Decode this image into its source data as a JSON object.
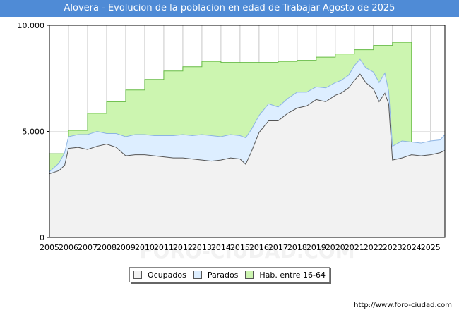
{
  "title": "Alovera - Evolucion de la poblacion en edad de Trabajar Agosto de 2025",
  "source_url": "http://www.foro-ciudad.com",
  "watermark": "FORO-CIUDAD.COM",
  "colors": {
    "title_bg": "#4f8bd6",
    "ocupados_fill": "#f2f2f2",
    "ocupados_line": "#555555",
    "parados_fill": "#ddeeff",
    "parados_line": "#8db4e2",
    "hab_fill": "#ccf5b0",
    "hab_line": "#66bb44"
  },
  "chart_data": {
    "type": "area",
    "title": "Alovera - Evolucion de la poblacion en edad de Trabajar Agosto de 2025",
    "xlabel": "",
    "ylabel": "",
    "x_tick_labels": [
      "2005",
      "2006",
      "2007",
      "2008",
      "2009",
      "2010",
      "2011",
      "2012",
      "2013",
      "2014",
      "2015",
      "2016",
      "2017",
      "2018",
      "2019",
      "2020",
      "2021",
      "2022",
      "2023",
      "2024",
      "2025"
    ],
    "y_tick_labels": [
      "0",
      "5.000",
      "10.000"
    ],
    "y_ticks": [
      0,
      5000,
      10000
    ],
    "xlim": [
      2005,
      2025.75
    ],
    "ylim": [
      0,
      10000
    ],
    "grid": "vertical",
    "legend_position": "bottom",
    "legend": [
      "Ocupados",
      "Parados",
      "Hab. entre 16-64"
    ],
    "hab_entre_16_64": {
      "name": "Hab. entre 16-64",
      "values": [
        {
          "year": 2005,
          "value": 3950
        },
        {
          "year": 2006,
          "value": 5050
        },
        {
          "year": 2007,
          "value": 5850
        },
        {
          "year": 2008,
          "value": 6400
        },
        {
          "year": 2009,
          "value": 6950
        },
        {
          "year": 2010,
          "value": 7450
        },
        {
          "year": 2011,
          "value": 7850
        },
        {
          "year": 2012,
          "value": 8050
        },
        {
          "year": 2013,
          "value": 8300
        },
        {
          "year": 2014,
          "value": 8250
        },
        {
          "year": 2015,
          "value": 8250
        },
        {
          "year": 2016,
          "value": 8250
        },
        {
          "year": 2017,
          "value": 8300
        },
        {
          "year": 2018,
          "value": 8350
        },
        {
          "year": 2019,
          "value": 8500
        },
        {
          "year": 2020,
          "value": 8650
        },
        {
          "year": 2021,
          "value": 8850
        },
        {
          "year": 2022,
          "value": 9050
        },
        {
          "year": 2023,
          "value": 9200
        }
      ]
    },
    "parados": {
      "name": "Parados",
      "x": [
        2005.0,
        2005.5,
        2005.8,
        2006.0,
        2006.5,
        2007.0,
        2007.5,
        2008.0,
        2008.5,
        2009.0,
        2009.5,
        2010.0,
        2010.5,
        2011.0,
        2011.5,
        2012.0,
        2012.5,
        2013.0,
        2013.5,
        2014.0,
        2014.5,
        2015.0,
        2015.3,
        2015.6,
        2016.0,
        2016.5,
        2017.0,
        2017.5,
        2018.0,
        2018.5,
        2019.0,
        2019.5,
        2020.0,
        2020.3,
        2020.7,
        2021.0,
        2021.3,
        2021.6,
        2022.0,
        2022.3,
        2022.6,
        2022.8,
        2023.0,
        2023.5,
        2024.0,
        2024.5,
        2025.0,
        2025.5,
        2025.75
      ],
      "values": [
        3100,
        3500,
        4000,
        4750,
        4850,
        4850,
        5000,
        4900,
        4900,
        4750,
        4850,
        4850,
        4800,
        4800,
        4800,
        4850,
        4800,
        4850,
        4800,
        4750,
        4850,
        4800,
        4700,
        5100,
        5750,
        6300,
        6150,
        6550,
        6850,
        6850,
        7100,
        7050,
        7300,
        7400,
        7650,
        8100,
        8400,
        8000,
        7800,
        7300,
        7750,
        6900,
        4300,
        4550,
        4500,
        4450,
        4550,
        4600,
        4850
      ]
    },
    "ocupados": {
      "name": "Ocupados",
      "x": [
        2005.0,
        2005.5,
        2005.8,
        2006.0,
        2006.5,
        2007.0,
        2007.5,
        2008.0,
        2008.5,
        2009.0,
        2009.5,
        2010.0,
        2010.5,
        2011.0,
        2011.5,
        2012.0,
        2012.5,
        2013.0,
        2013.5,
        2014.0,
        2014.5,
        2015.0,
        2015.3,
        2015.6,
        2016.0,
        2016.5,
        2017.0,
        2017.5,
        2018.0,
        2018.5,
        2019.0,
        2019.5,
        2020.0,
        2020.3,
        2020.7,
        2021.0,
        2021.3,
        2021.6,
        2022.0,
        2022.3,
        2022.6,
        2022.8,
        2023.0,
        2023.5,
        2024.0,
        2024.5,
        2025.0,
        2025.5,
        2025.75
      ],
      "values": [
        3000,
        3150,
        3400,
        4200,
        4250,
        4150,
        4300,
        4400,
        4250,
        3850,
        3900,
        3900,
        3850,
        3800,
        3750,
        3750,
        3700,
        3650,
        3600,
        3650,
        3750,
        3700,
        3450,
        4050,
        4950,
        5500,
        5500,
        5850,
        6100,
        6200,
        6500,
        6400,
        6700,
        6800,
        7050,
        7400,
        7700,
        7300,
        7000,
        6400,
        6800,
        6300,
        3650,
        3750,
        3900,
        3850,
        3900,
        4000,
        4100
      ]
    }
  }
}
